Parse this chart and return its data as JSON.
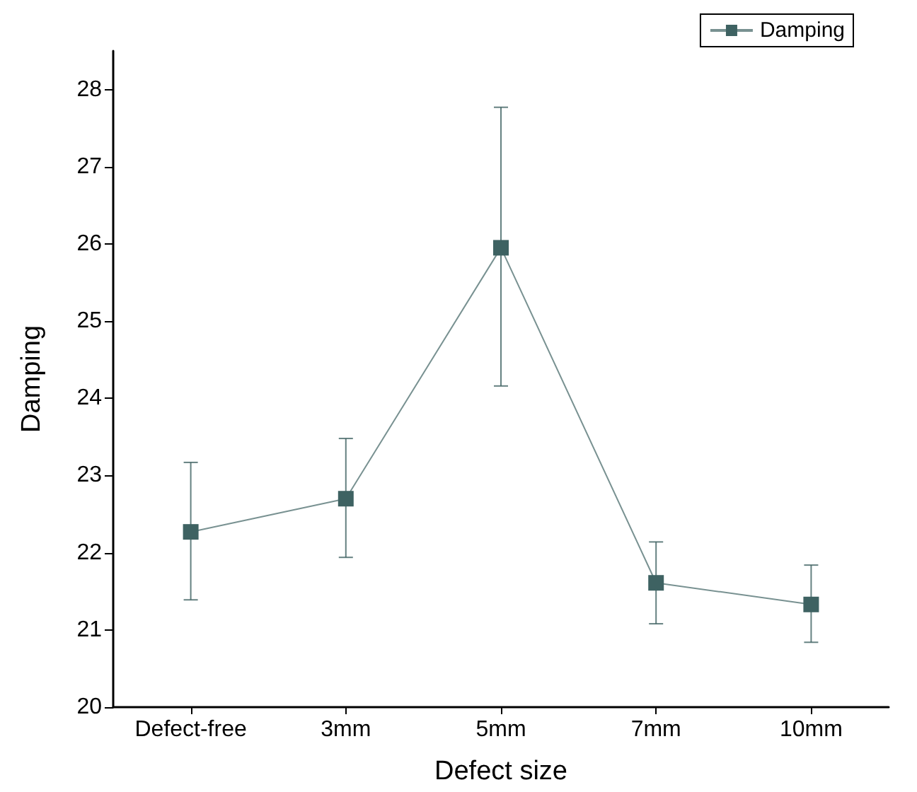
{
  "chart_data": {
    "type": "line",
    "xlabel": "Defect size",
    "ylabel": "Damping",
    "categories": [
      "Defect-free",
      "3mm",
      "5mm",
      "7mm",
      "10mm"
    ],
    "series": [
      {
        "name": "Damping",
        "color": "#3e6262",
        "values": [
          22.27,
          22.7,
          25.95,
          21.61,
          21.33
        ],
        "errors": [
          [
            21.39,
            23.17
          ],
          [
            21.94,
            23.48
          ],
          [
            24.16,
            27.77
          ],
          [
            21.08,
            22.14
          ],
          [
            20.84,
            21.84
          ]
        ]
      }
    ],
    "ylim": [
      20,
      28.5
    ],
    "yticks": [
      20,
      21,
      22,
      23,
      24,
      25,
      26,
      27,
      28
    ],
    "grid": false,
    "legend": "top right",
    "marker": "square",
    "line_style": "solid"
  }
}
